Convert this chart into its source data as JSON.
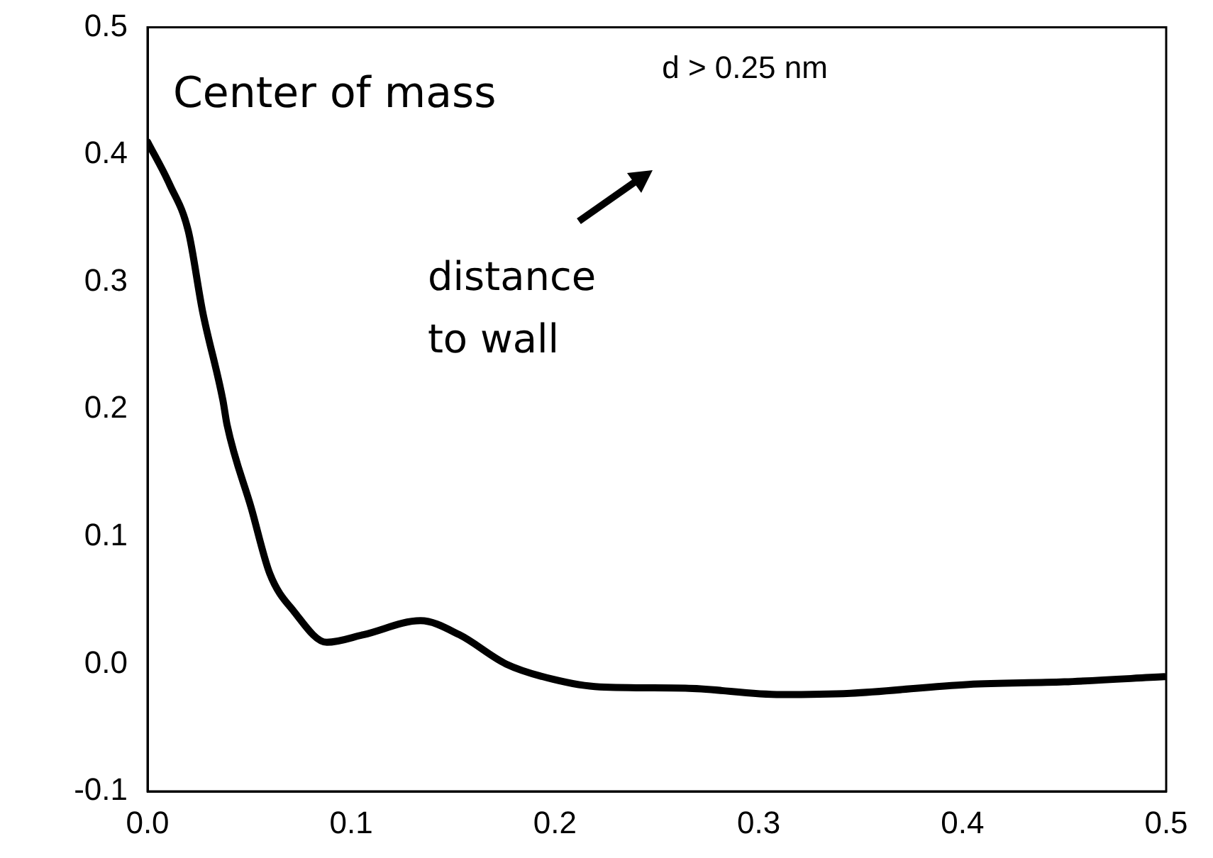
{
  "chart_data": {
    "type": "line",
    "annotations": [
      "Center of mass",
      "d > 0.25 nm",
      "distance to wall"
    ],
    "series": [
      {
        "color": "#000000",
        "x": [
          0,
          0.011,
          0.02,
          0.027,
          0.037,
          0.039,
          0.051,
          0.06,
          0.072,
          0.088,
          0.106,
          0.134,
          0.153,
          0.176,
          0.199,
          0.222,
          0.264,
          0.311,
          0.345,
          0.403,
          0.45,
          0.499
        ],
        "values": [
          0.41,
          0.376,
          0.34,
          0.277,
          0.207,
          0.188,
          0.122,
          0.071,
          0.041,
          0.017,
          0.023,
          0.034,
          0.023,
          0,
          -0.012,
          -0.018,
          -0.019,
          -0.024,
          -0.023,
          -0.016,
          -0.014,
          -0.01
        ]
      }
    ],
    "xlim": [
      0,
      0.5
    ],
    "ylim": [
      -0.1,
      0.5
    ],
    "xticks": [
      {
        "value": 0,
        "label": "0.0"
      },
      0.1,
      0.2,
      0.3,
      0.4,
      0.5
    ],
    "yticks": [
      -0.1,
      {
        "value": 0,
        "label": "0.0"
      },
      0.1,
      0.2,
      0.3,
      0.4,
      0.5
    ],
    "grid": false,
    "legend": false,
    "marker": "none",
    "line_style": "solid"
  }
}
